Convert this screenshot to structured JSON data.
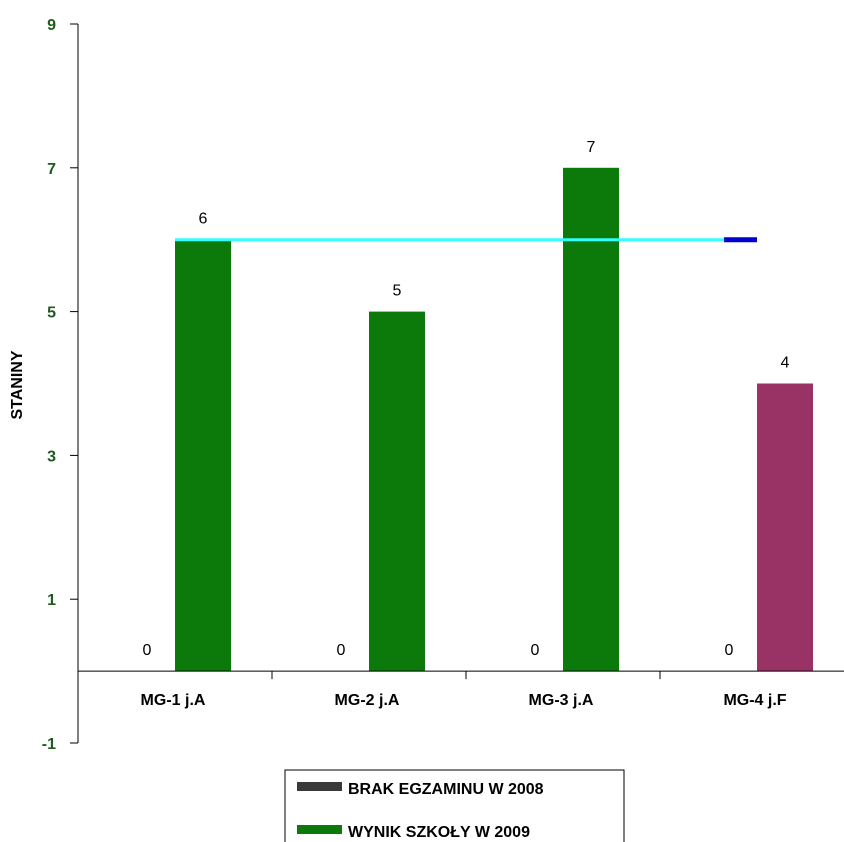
{
  "chart_data": {
    "type": "bar",
    "ylabel": "STANINY",
    "ylim": [
      -1,
      9
    ],
    "yticks": [
      9,
      7,
      5,
      3,
      1,
      -1
    ],
    "categories": [
      "MG-1 j.A",
      "MG-2 j.A",
      "MG-3 j.A",
      "MG-4 j.F"
    ],
    "series": [
      {
        "name": "BRAK EGZAMINU W 2008",
        "values": [
          0,
          0,
          0,
          0
        ],
        "color": "#3a3a3a"
      },
      {
        "name": "WYNIK SZKOŁY W 2009",
        "values": [
          6,
          5,
          7,
          4
        ],
        "color": "#0b7a0b",
        "point_colors": [
          "#0b7a0b",
          "#0b7a0b",
          "#0b7a0b",
          "#993366"
        ]
      }
    ],
    "reference_line": {
      "value": 6,
      "color": "#33ffff",
      "end_marker_color": "#0000cc"
    },
    "legend_position": "bottom"
  }
}
